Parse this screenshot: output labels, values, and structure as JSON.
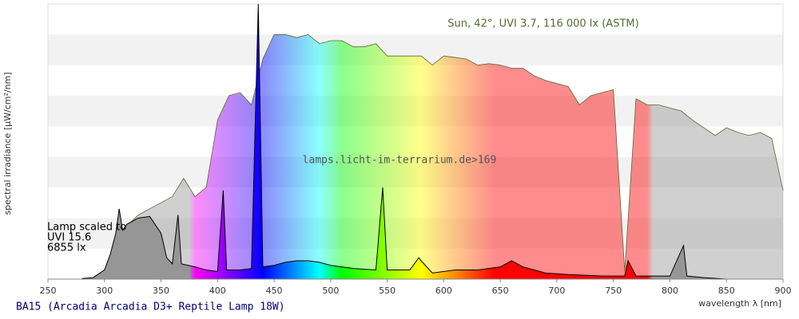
{
  "chart_data": {
    "type": "area",
    "title": "BA15 (Arcadia Arcadia D3+ Reptile Lamp 18W)",
    "x_label": "wavelength λ [nm]",
    "y_label": "spectral irradiance [µW/cm²/nm]",
    "annotations": [
      "Sun, 42°, UVI 3.7, 116 000 lx (ASTM)",
      "lamps.licht-im-terrarium.de>169"
    ],
    "lamp_note": [
      "Lamp scaled to",
      "UVI 15.6",
      "6855 lx"
    ],
    "xlim": [
      250,
      900
    ],
    "xticks": [
      250,
      300,
      350,
      400,
      450,
      500,
      550,
      600,
      650,
      700,
      750,
      800,
      850,
      900
    ],
    "ylim": [
      0,
      9
    ],
    "grid": true,
    "series": [
      {
        "name": "Sun",
        "color": "#556b2f",
        "x": [
          290,
          300,
          310,
          320,
          330,
          340,
          350,
          360,
          370,
          380,
          390,
          400,
          410,
          420,
          430,
          440,
          450,
          460,
          470,
          480,
          490,
          500,
          510,
          520,
          530,
          540,
          550,
          560,
          570,
          580,
          590,
          600,
          610,
          620,
          630,
          640,
          650,
          660,
          670,
          680,
          690,
          700,
          710,
          720,
          730,
          740,
          750,
          760,
          770,
          780,
          790,
          800,
          810,
          820,
          830,
          840,
          850,
          860,
          870,
          880,
          890,
          900
        ],
        "values": [
          0,
          0.26,
          1.0,
          1.75,
          2.1,
          2.3,
          2.5,
          2.7,
          3.3,
          2.7,
          3.0,
          5.2,
          6.0,
          6.1,
          5.7,
          7.2,
          8.0,
          8.0,
          7.9,
          8.0,
          7.7,
          7.8,
          7.8,
          7.6,
          7.6,
          7.7,
          7.3,
          7.3,
          7.3,
          7.3,
          7.0,
          7.3,
          7.25,
          7.2,
          7.0,
          7.05,
          7.0,
          6.9,
          6.9,
          6.65,
          6.5,
          6.4,
          6.3,
          5.7,
          6.0,
          6.1,
          6.2,
          0.26,
          5.9,
          5.7,
          5.7,
          5.6,
          5.5,
          5.2,
          4.95,
          4.7,
          4.95,
          4.8,
          4.7,
          4.8,
          4.6,
          2.9
        ]
      },
      {
        "name": "Lamp",
        "color": "#000000",
        "x": [
          280,
          290,
          300,
          305,
          310,
          313,
          316,
          320,
          330,
          340,
          350,
          355,
          360,
          365,
          368,
          380,
          390,
          400,
          405,
          408,
          420,
          430,
          436,
          440,
          450,
          460,
          470,
          480,
          490,
          500,
          520,
          540,
          546,
          550,
          570,
          578,
          580,
          590,
          610,
          630,
          650,
          660,
          670,
          690,
          710,
          740,
          760,
          763,
          770,
          800,
          812,
          815,
          830,
          850,
          900
        ],
        "values": [
          0.02,
          0.05,
          0.3,
          0.8,
          1.5,
          2.3,
          1.6,
          1.8,
          2.0,
          2.05,
          1.5,
          0.7,
          0.5,
          2.1,
          0.5,
          0.4,
          0.3,
          0.25,
          2.9,
          0.3,
          0.3,
          0.35,
          9.0,
          0.4,
          0.45,
          0.55,
          0.6,
          0.6,
          0.55,
          0.45,
          0.35,
          0.3,
          3.0,
          0.3,
          0.3,
          0.7,
          0.6,
          0.2,
          0.3,
          0.3,
          0.4,
          0.6,
          0.4,
          0.2,
          0.15,
          0.1,
          0.1,
          0.6,
          0.1,
          0.1,
          1.1,
          0.1,
          0.05,
          0,
          0
        ]
      }
    ]
  }
}
